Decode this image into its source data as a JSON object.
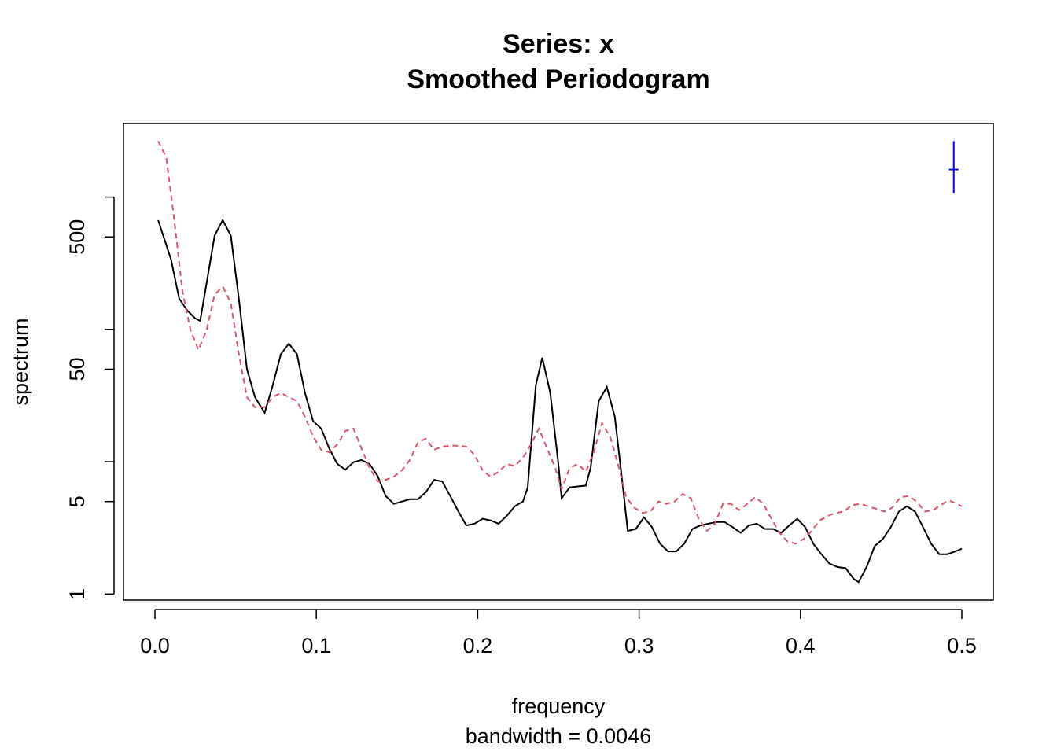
{
  "chart_data": {
    "type": "line",
    "title": "Series: x",
    "subtitle": "Smoothed Periodogram",
    "xlabel": "frequency",
    "xsublabel": "bandwidth = 0.0046",
    "ylabel": "spectrum",
    "ylog": true,
    "xlim": [
      -0.0195,
      0.5195
    ],
    "ylim": [
      0.9,
      3600
    ],
    "xticks": [
      {
        "value": 0,
        "label": "0.0"
      },
      0.1,
      0.2,
      0.3,
      0.4,
      0.5
    ],
    "yticks": [
      1,
      5,
      50,
      500
    ],
    "yminorticks": [
      10,
      100,
      1000
    ],
    "series": [
      {
        "color": "#000000",
        "dash": "solid",
        "x": [
          0.002,
          0.01,
          0.015,
          0.02,
          0.025,
          0.028,
          0.032,
          0.037,
          0.042,
          0.047,
          0.052,
          0.057,
          0.062,
          0.068,
          0.073,
          0.078,
          0.083,
          0.088,
          0.093,
          0.098,
          0.103,
          0.108,
          0.113,
          0.118,
          0.123,
          0.128,
          0.133,
          0.138,
          0.143,
          0.148,
          0.153,
          0.158,
          0.163,
          0.168,
          0.173,
          0.178,
          0.183,
          0.188,
          0.193,
          0.198,
          0.203,
          0.208,
          0.213,
          0.218,
          0.223,
          0.228,
          0.231,
          0.236,
          0.24,
          0.245,
          0.25,
          0.252,
          0.257,
          0.262,
          0.267,
          0.27,
          0.275,
          0.28,
          0.285,
          0.29,
          0.293,
          0.298,
          0.303,
          0.308,
          0.313,
          0.318,
          0.323,
          0.328,
          0.333,
          0.338,
          0.343,
          0.348,
          0.353,
          0.358,
          0.363,
          0.368,
          0.373,
          0.378,
          0.383,
          0.388,
          0.393,
          0.398,
          0.403,
          0.408,
          0.413,
          0.418,
          0.423,
          0.428,
          0.433,
          0.436,
          0.441,
          0.446,
          0.451,
          0.456,
          0.461,
          0.466,
          0.471,
          0.476,
          0.481,
          0.486,
          0.491,
          0.496,
          0.5
        ],
        "values": [
          670,
          337,
          171,
          139,
          121,
          116,
          224,
          511,
          670,
          511,
          171,
          50,
          30.8,
          23.4,
          37.8,
          65,
          78,
          65,
          33,
          20.3,
          17.8,
          12.6,
          9.6,
          8.7,
          9.9,
          10.3,
          9.6,
          7.8,
          5.5,
          4.8,
          5.0,
          5.2,
          5.2,
          5.9,
          7.3,
          7.1,
          5.5,
          4.2,
          3.3,
          3.4,
          3.7,
          3.6,
          3.4,
          3.9,
          4.6,
          5.0,
          6.4,
          37.8,
          61,
          33,
          9.6,
          5.3,
          6.4,
          6.5,
          6.6,
          9.0,
          28.7,
          36.7,
          21.8,
          6.4,
          3.0,
          3.1,
          3.8,
          3.2,
          2.4,
          2.1,
          2.1,
          2.4,
          3.1,
          3.3,
          3.4,
          3.5,
          3.5,
          3.2,
          2.9,
          3.3,
          3.4,
          3.1,
          3.1,
          2.9,
          3.3,
          3.7,
          3.2,
          2.4,
          2.0,
          1.7,
          1.6,
          1.57,
          1.3,
          1.23,
          1.6,
          2.3,
          2.6,
          3.2,
          4.2,
          4.6,
          4.2,
          3.2,
          2.4,
          2.0,
          2.0,
          2.1,
          2.2
        ]
      },
      {
        "color": "#DF536B",
        "dash": "dashed",
        "x": [
          0.002,
          0.007,
          0.012,
          0.017,
          0.022,
          0.027,
          0.032,
          0.037,
          0.042,
          0.047,
          0.052,
          0.057,
          0.062,
          0.068,
          0.073,
          0.078,
          0.083,
          0.088,
          0.093,
          0.098,
          0.103,
          0.108,
          0.113,
          0.118,
          0.123,
          0.128,
          0.133,
          0.138,
          0.143,
          0.148,
          0.153,
          0.158,
          0.163,
          0.168,
          0.173,
          0.178,
          0.183,
          0.188,
          0.193,
          0.198,
          0.203,
          0.208,
          0.213,
          0.218,
          0.223,
          0.228,
          0.233,
          0.238,
          0.243,
          0.248,
          0.252,
          0.257,
          0.262,
          0.267,
          0.272,
          0.277,
          0.282,
          0.287,
          0.292,
          0.297,
          0.302,
          0.307,
          0.312,
          0.317,
          0.322,
          0.327,
          0.332,
          0.337,
          0.342,
          0.347,
          0.352,
          0.357,
          0.362,
          0.367,
          0.372,
          0.377,
          0.382,
          0.387,
          0.392,
          0.397,
          0.402,
          0.407,
          0.412,
          0.417,
          0.422,
          0.427,
          0.432,
          0.437,
          0.442,
          0.447,
          0.452,
          0.457,
          0.462,
          0.467,
          0.472,
          0.477,
          0.482,
          0.487,
          0.492,
          0.497,
          0.5
        ],
        "values": [
          2650,
          2000,
          670,
          196,
          99,
          70,
          99,
          183,
          210,
          159,
          65,
          30.8,
          25.8,
          25.8,
          30.8,
          33,
          30.8,
          28.7,
          21.8,
          15.5,
          12.3,
          11.8,
          13.5,
          17.1,
          17.8,
          12.6,
          9.0,
          7.1,
          7.3,
          7.7,
          8.6,
          10.3,
          14.1,
          14.9,
          12.3,
          13,
          13.2,
          13.2,
          13,
          11.3,
          8.6,
          7.7,
          8.4,
          9.6,
          9.3,
          10.7,
          13.5,
          17.8,
          12.6,
          9.0,
          6.2,
          9.0,
          9.6,
          8.4,
          11.8,
          19.6,
          15.5,
          9.6,
          5.4,
          4.5,
          4.1,
          4.2,
          5.0,
          4.8,
          5.0,
          5.7,
          5.3,
          3.7,
          3.0,
          3.4,
          4.8,
          4.8,
          4.3,
          4.8,
          5.4,
          4.8,
          3.7,
          2.9,
          2.5,
          2.4,
          2.6,
          3.0,
          3.6,
          3.9,
          4.1,
          4.2,
          4.7,
          4.8,
          4.6,
          4.4,
          4.2,
          4.5,
          5.4,
          5.5,
          5.0,
          4.2,
          4.3,
          4.7,
          5.1,
          4.8,
          4.6
        ]
      }
    ],
    "ci": {
      "x": 0.495,
      "center": 1615,
      "lower": 1070,
      "upper": 2650,
      "color": "#0000FF"
    }
  }
}
